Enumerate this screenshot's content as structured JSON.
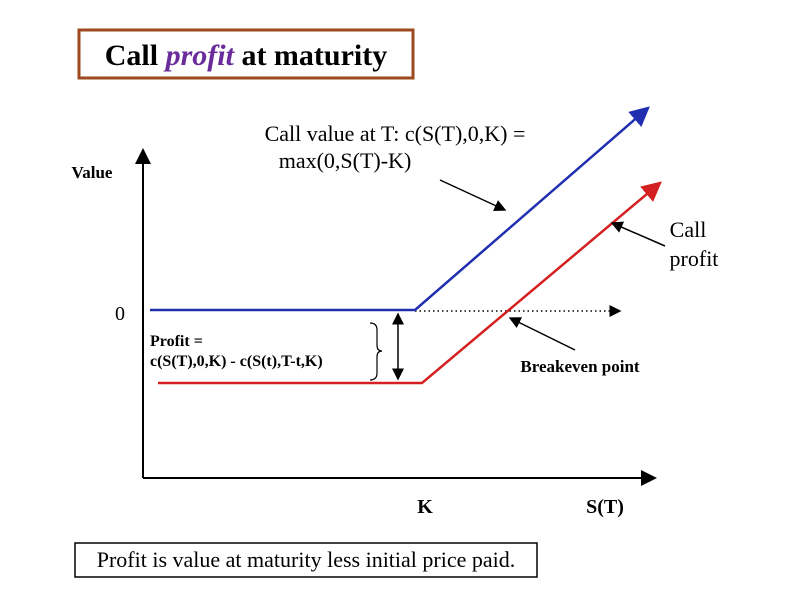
{
  "title": {
    "parts": [
      "Call",
      "profit",
      "at maturity"
    ]
  },
  "axes": {
    "y_label": "Value",
    "zero": "0",
    "k_label": "K",
    "x_label": "S(T)"
  },
  "annotations": {
    "call_value": [
      "Call value at T:  c(S(T),0,K) =",
      "max(0,S(T)-K)"
    ],
    "call_profit": [
      "Call",
      "profit"
    ],
    "profit_formula": [
      "Profit =",
      "c(S(T),0,K) - c(S(t),T-t,K)"
    ],
    "breakeven": "Breakeven point"
  },
  "footer": "Profit is value at maturity less initial price paid."
}
